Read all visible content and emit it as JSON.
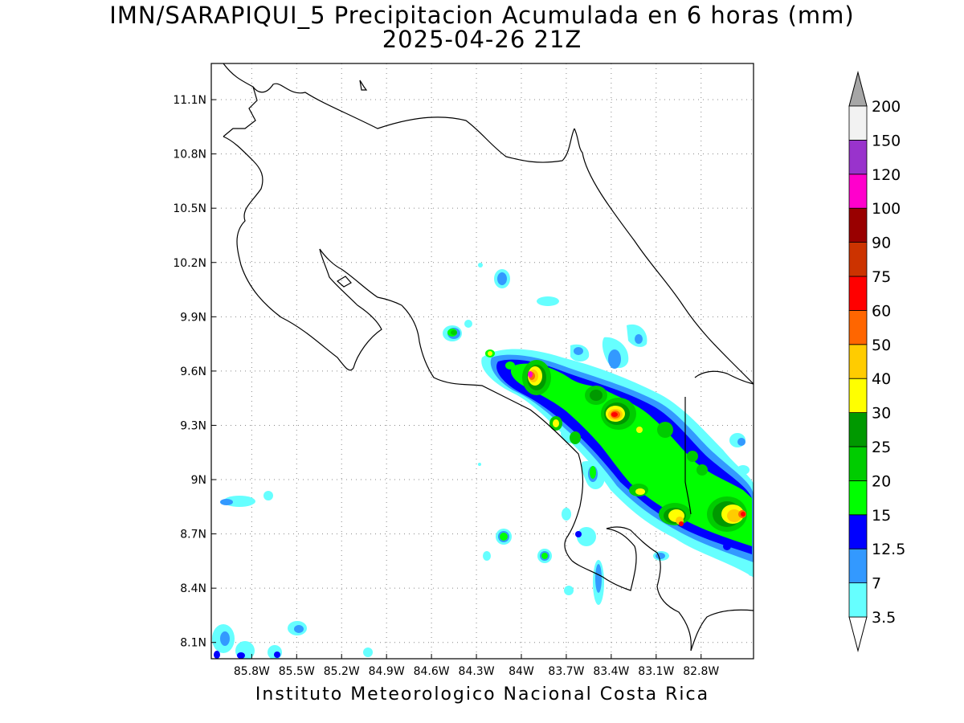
{
  "title": {
    "line1": "IMN/SARAPIQUI_5 Precipitacion Acumulada en 6 horas (mm)",
    "line2": "2025-04-26 21Z"
  },
  "footer": "Instituto Meteorologico Nacional Costa Rica",
  "map": {
    "lon_range": [
      -86.07,
      -82.45
    ],
    "lat_range": [
      8.01,
      11.3
    ],
    "x_ticks": [
      "85.8W",
      "85.5W",
      "85.2W",
      "84.9W",
      "84.6W",
      "84.3W",
      "84W",
      "83.7W",
      "83.4W",
      "83.1W",
      "82.8W"
    ],
    "x_tick_values": [
      -85.8,
      -85.5,
      -85.2,
      -84.9,
      -84.6,
      -84.3,
      -84.0,
      -83.7,
      -83.4,
      -83.1,
      -82.8
    ],
    "y_ticks": [
      "11.1N",
      "10.8N",
      "10.5N",
      "10.2N",
      "9.9N",
      "9.6N",
      "9.3N",
      "9N",
      "8.7N",
      "8.4N",
      "8.1N"
    ],
    "y_tick_values": [
      11.1,
      10.8,
      10.5,
      10.2,
      9.9,
      9.6,
      9.3,
      9.0,
      8.7,
      8.4,
      8.1
    ],
    "grid": "dotted"
  },
  "colorbar": {
    "labels": [
      "3.5",
      "7",
      "12.5",
      "15",
      "20",
      "25",
      "30",
      "40",
      "50",
      "60",
      "75",
      "90",
      "100",
      "120",
      "150",
      "200"
    ],
    "colors": [
      "#66ffff",
      "#3399ff",
      "#0000ff",
      "#00ff00",
      "#00cc00",
      "#009900",
      "#ffff00",
      "#ffcc00",
      "#ff6600",
      "#ff0000",
      "#cc3300",
      "#990000",
      "#ff00cc",
      "#9933cc",
      "#f2f2f2"
    ],
    "under_color": "#ffffff",
    "over_color": "#a6a6a6"
  }
}
